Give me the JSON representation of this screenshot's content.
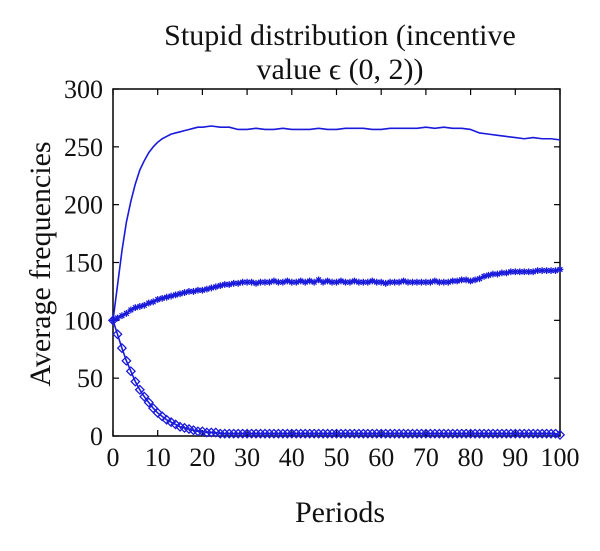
{
  "chart_data": {
    "type": "line",
    "title_lines": [
      "Stupid distribution (incentive",
      "value ϵ (0, 2))"
    ],
    "xlabel": "Periods",
    "ylabel": "Average frequencies",
    "xlim": [
      0,
      100
    ],
    "ylim": [
      0,
      300
    ],
    "xticks": [
      0,
      10,
      20,
      30,
      40,
      50,
      60,
      70,
      80,
      90,
      100
    ],
    "yticks": [
      0,
      50,
      100,
      150,
      200,
      250,
      300
    ],
    "grid": false,
    "line_color": "#1a1adb",
    "series": [
      {
        "marker": "none",
        "x": [
          0,
          1,
          2,
          3,
          4,
          5,
          6,
          7,
          8,
          9,
          10,
          11,
          12,
          13,
          14,
          15,
          16,
          17,
          18,
          19,
          20,
          22,
          24,
          26,
          28,
          30,
          32,
          34,
          36,
          38,
          40,
          42,
          44,
          46,
          48,
          50,
          52,
          54,
          56,
          58,
          60,
          62,
          64,
          66,
          68,
          70,
          72,
          74,
          76,
          78,
          80,
          82,
          84,
          86,
          88,
          90,
          92,
          94,
          96,
          98,
          100
        ],
        "values": [
          100,
          130,
          160,
          185,
          203,
          218,
          230,
          238,
          245,
          250,
          254,
          257,
          259,
          261,
          262,
          263,
          264,
          265,
          266,
          267,
          267,
          268,
          267,
          267,
          265,
          265,
          266,
          265,
          265,
          266,
          265,
          265,
          265,
          266,
          265,
          265,
          266,
          266,
          266,
          265,
          265,
          266,
          266,
          266,
          266,
          267,
          266,
          267,
          266,
          266,
          265,
          262,
          261,
          260,
          259,
          258,
          257,
          258,
          257,
          257,
          256
        ]
      },
      {
        "marker": "star",
        "x": [
          0,
          1,
          2,
          3,
          4,
          5,
          6,
          7,
          8,
          9,
          10,
          11,
          12,
          13,
          14,
          15,
          16,
          17,
          18,
          19,
          20,
          21,
          22,
          23,
          24,
          25,
          26,
          27,
          28,
          29,
          30,
          31,
          32,
          33,
          34,
          35,
          36,
          37,
          38,
          39,
          40,
          41,
          42,
          43,
          44,
          45,
          46,
          47,
          48,
          49,
          50,
          51,
          52,
          53,
          54,
          55,
          56,
          57,
          58,
          59,
          60,
          61,
          62,
          63,
          64,
          65,
          66,
          67,
          68,
          69,
          70,
          71,
          72,
          73,
          74,
          75,
          76,
          77,
          78,
          79,
          80,
          81,
          82,
          83,
          84,
          85,
          86,
          87,
          88,
          89,
          90,
          91,
          92,
          93,
          94,
          95,
          96,
          97,
          98,
          99,
          100
        ],
        "values": [
          100,
          102,
          104,
          106,
          109,
          111,
          112,
          113,
          115,
          116,
          118,
          119,
          120,
          121,
          122,
          123,
          124,
          125,
          125,
          126,
          126,
          127,
          128,
          129,
          130,
          131,
          131,
          132,
          132,
          133,
          133,
          133,
          132,
          133,
          133,
          133,
          134,
          133,
          133,
          134,
          133,
          133,
          134,
          133,
          134,
          133,
          135,
          133,
          134,
          133,
          133,
          134,
          133,
          133,
          134,
          133,
          133,
          133,
          134,
          133,
          133,
          132,
          133,
          133,
          133,
          134,
          133,
          133,
          133,
          133,
          133,
          133,
          134,
          133,
          133,
          133,
          134,
          134,
          135,
          135,
          134,
          135,
          136,
          138,
          139,
          140,
          140,
          141,
          141,
          142,
          142,
          142,
          142,
          142,
          142,
          143,
          143,
          143,
          143,
          143,
          144
        ]
      },
      {
        "marker": "diamond",
        "x": [
          0,
          1,
          2,
          3,
          4,
          5,
          6,
          7,
          8,
          9,
          10,
          11,
          12,
          13,
          14,
          15,
          16,
          17,
          18,
          19,
          20,
          21,
          22,
          23,
          24,
          25,
          26,
          27,
          28,
          29,
          30,
          31,
          32,
          33,
          34,
          35,
          36,
          37,
          38,
          39,
          40,
          41,
          42,
          43,
          44,
          45,
          46,
          47,
          48,
          49,
          50,
          51,
          52,
          53,
          54,
          55,
          56,
          57,
          58,
          59,
          60,
          61,
          62,
          63,
          64,
          65,
          66,
          67,
          68,
          69,
          70,
          71,
          72,
          73,
          74,
          75,
          76,
          77,
          78,
          79,
          80,
          81,
          82,
          83,
          84,
          85,
          86,
          87,
          88,
          89,
          90,
          91,
          92,
          93,
          94,
          95,
          96,
          97,
          98,
          99,
          100
        ],
        "values": [
          100,
          88,
          76,
          65,
          56,
          47,
          40,
          34,
          29,
          24,
          20,
          17,
          14,
          12,
          10,
          8,
          7,
          6,
          5,
          4,
          4,
          3,
          3,
          3,
          2,
          2,
          2,
          2,
          2,
          2,
          2,
          2,
          2,
          2,
          2,
          2,
          2,
          2,
          2,
          2,
          2,
          2,
          2,
          2,
          2,
          2,
          2,
          2,
          2,
          2,
          2,
          2,
          2,
          2,
          2,
          2,
          2,
          2,
          2,
          2,
          2,
          2,
          2,
          2,
          2,
          2,
          2,
          2,
          2,
          2,
          2,
          2,
          2,
          2,
          2,
          2,
          2,
          2,
          2,
          2,
          2,
          2,
          2,
          2,
          2,
          2,
          2,
          2,
          2,
          2,
          2,
          2,
          2,
          2,
          2,
          2,
          2,
          2,
          2,
          2,
          1
        ]
      }
    ]
  }
}
